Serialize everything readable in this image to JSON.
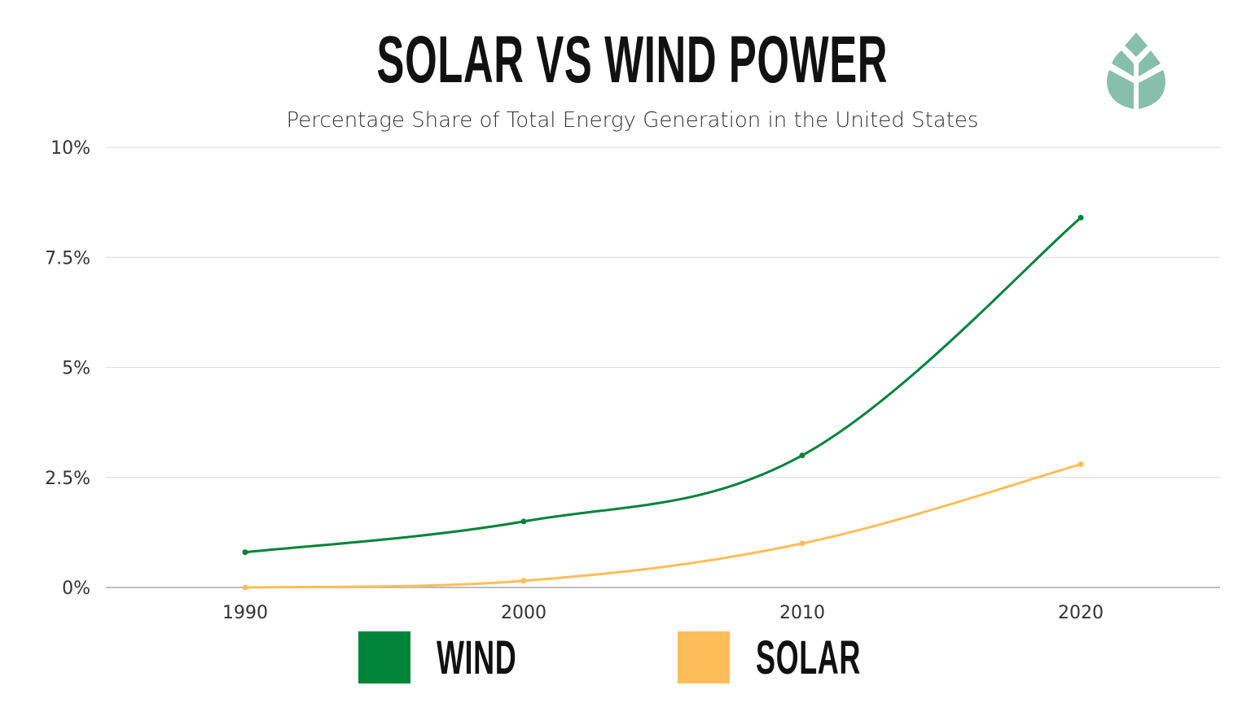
{
  "header": {
    "title": "SOLAR VS WIND POWER",
    "subtitle": "Percentage Share of Total Energy Generation in the United States",
    "logo_icon": "leaf-icon",
    "logo_color": "#88bfac"
  },
  "chart_data": {
    "type": "line",
    "title": "SOLAR VS WIND POWER",
    "subtitle": "Percentage Share of Total Energy Generation in the United States",
    "xlabel": "",
    "ylabel": "",
    "x": [
      1990,
      2000,
      2010,
      2020
    ],
    "x_tick_labels": [
      "1990",
      "2000",
      "2010",
      "2020"
    ],
    "xlim": [
      1985,
      2025
    ],
    "ylim": [
      0,
      10
    ],
    "y_ticks": [
      0,
      2.5,
      5,
      7.5,
      10
    ],
    "y_tick_labels": [
      "0%",
      "2.5%",
      "5%",
      "7.5%",
      "10%"
    ],
    "grid": true,
    "smooth": true,
    "series": [
      {
        "name": "WIND",
        "color": "#00843a",
        "values": [
          0.8,
          1.5,
          3.0,
          8.4
        ]
      },
      {
        "name": "SOLAR",
        "color": "#ffbd59",
        "values": [
          0.0,
          0.15,
          1.0,
          2.8
        ]
      }
    ],
    "legend": {
      "placement": "bottom",
      "entries": [
        {
          "label": "WIND",
          "color": "#00843a"
        },
        {
          "label": "SOLAR",
          "color": "#ffbd59"
        }
      ]
    }
  }
}
